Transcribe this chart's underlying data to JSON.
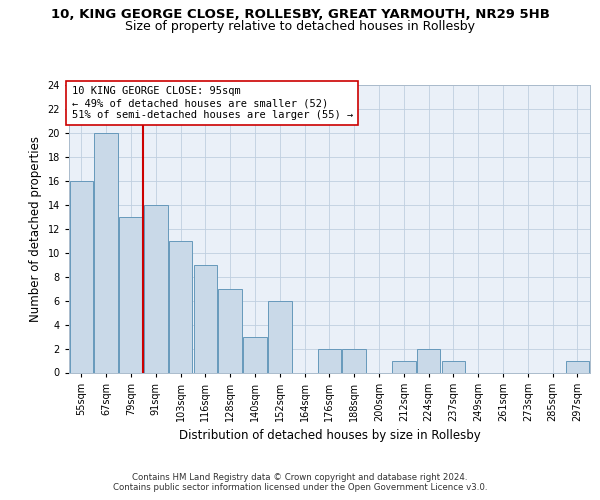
{
  "title_line1": "10, KING GEORGE CLOSE, ROLLESBY, GREAT YARMOUTH, NR29 5HB",
  "title_line2": "Size of property relative to detached houses in Rollesby",
  "xlabel": "Distribution of detached houses by size in Rollesby",
  "ylabel": "Number of detached properties",
  "bin_labels": [
    "55sqm",
    "67sqm",
    "79sqm",
    "91sqm",
    "103sqm",
    "116sqm",
    "128sqm",
    "140sqm",
    "152sqm",
    "164sqm",
    "176sqm",
    "188sqm",
    "200sqm",
    "212sqm",
    "224sqm",
    "237sqm",
    "249sqm",
    "261sqm",
    "273sqm",
    "285sqm",
    "297sqm"
  ],
  "bar_values": [
    16,
    20,
    13,
    14,
    11,
    9,
    7,
    3,
    6,
    0,
    2,
    2,
    0,
    1,
    2,
    1,
    0,
    0,
    0,
    0,
    1
  ],
  "bar_color": "#c9d9e8",
  "bar_edge_color": "#6699bb",
  "vline_x_index": 3,
  "vline_color": "#cc0000",
  "annotation_text": "10 KING GEORGE CLOSE: 95sqm\n← 49% of detached houses are smaller (52)\n51% of semi-detached houses are larger (55) →",
  "annotation_box_color": "#ffffff",
  "annotation_box_edge": "#cc0000",
  "ylim": [
    0,
    24
  ],
  "yticks": [
    0,
    2,
    4,
    6,
    8,
    10,
    12,
    14,
    16,
    18,
    20,
    22,
    24
  ],
  "plot_bg_color": "#eaf0f8",
  "footer_text": "Contains HM Land Registry data © Crown copyright and database right 2024.\nContains public sector information licensed under the Open Government Licence v3.0.",
  "title_fontsize": 9.5,
  "subtitle_fontsize": 9,
  "tick_fontsize": 7,
  "ylabel_fontsize": 8.5,
  "xlabel_fontsize": 8.5,
  "annotation_fontsize": 7.5,
  "footer_fontsize": 6.2
}
